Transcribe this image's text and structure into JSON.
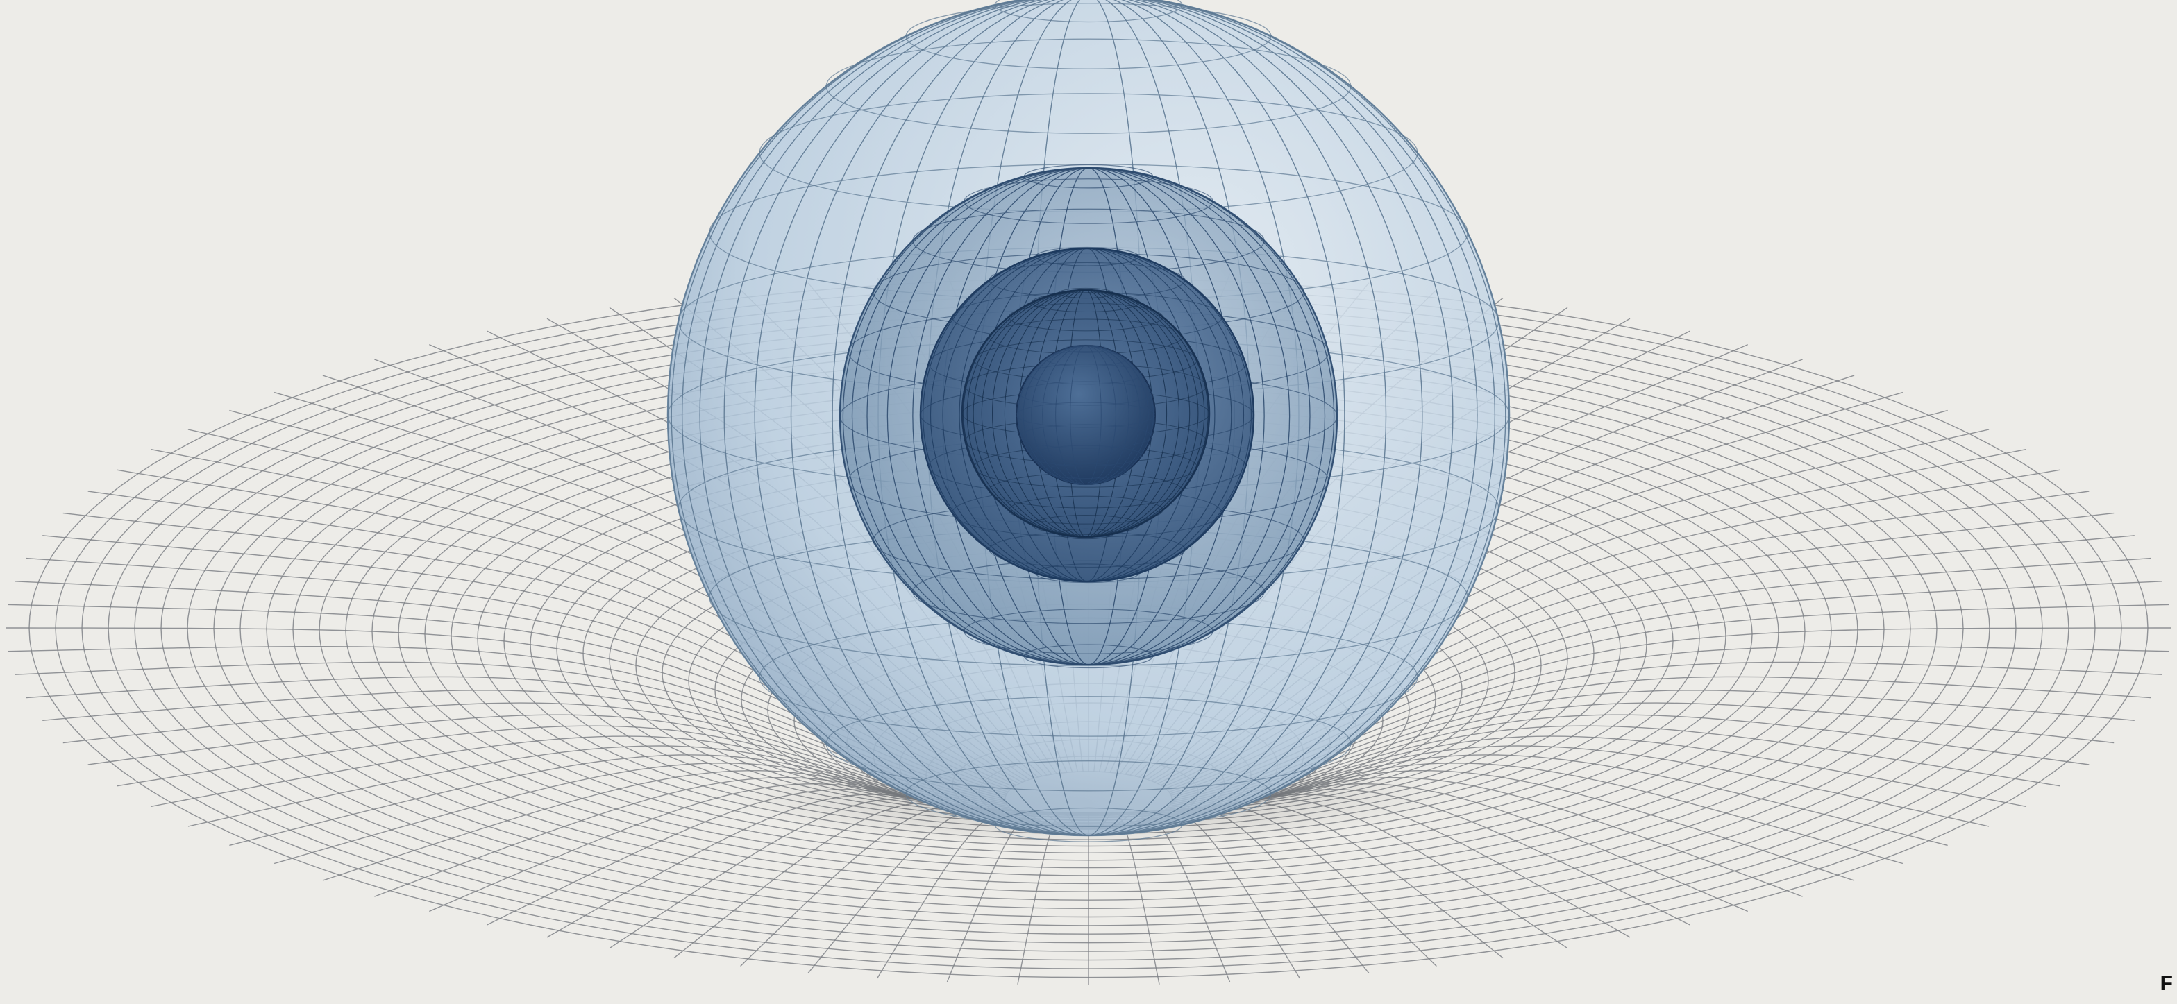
{
  "illustration": {
    "subject": "nested-spheres-over-curved-grid",
    "palette": {
      "background": "#edece8",
      "grid_line": "#7f8387",
      "outer_sphere_fill": "#c7d9e8",
      "outer_sphere_edge": "#6e8aa3",
      "mid_sphere_fill": "#7f9bb6",
      "inner_sphere_fill": "#3e5f86",
      "core_fill": "#1f3d66",
      "shell_line": "#2d4a6d"
    },
    "shells": [
      {
        "name": "outer-shell"
      },
      {
        "name": "middle-shell"
      },
      {
        "name": "inner-shell"
      },
      {
        "name": "fourth-shell"
      },
      {
        "name": "core"
      }
    ]
  },
  "corner_mark": "F"
}
